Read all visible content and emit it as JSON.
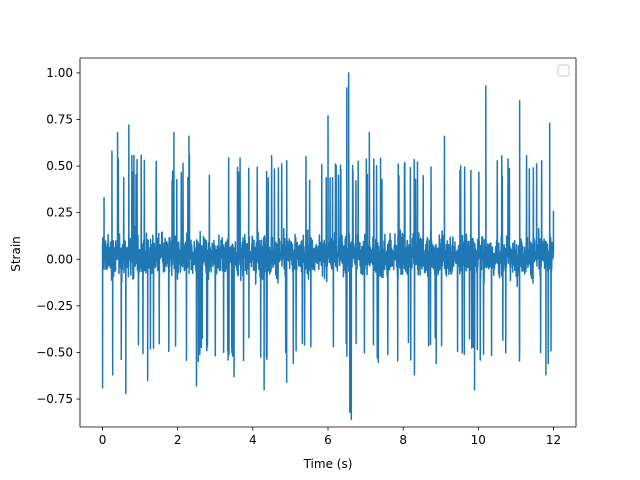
{
  "chart_data": {
    "type": "line",
    "title": "",
    "xlabel": "Time (s)",
    "ylabel": "Strain",
    "xlim": [
      -0.6,
      12.6
    ],
    "ylim": [
      -0.9,
      1.08
    ],
    "xticks": [
      0,
      2,
      4,
      6,
      8,
      10,
      12
    ],
    "xtick_labels": [
      "0",
      "2",
      "4",
      "6",
      "8",
      "10",
      "12"
    ],
    "yticks": [
      -0.75,
      -0.5,
      -0.25,
      0.0,
      0.25,
      0.5,
      0.75,
      1.0
    ],
    "ytick_labels": [
      "−0.75",
      "−0.50",
      "−0.25",
      "0.00",
      "0.25",
      "0.50",
      "0.75",
      "1.00"
    ],
    "grid": false,
    "legend": {
      "placement": "upper-right",
      "entries": []
    },
    "series": [
      {
        "color": "#1f77b4",
        "x_range": [
          0,
          12
        ],
        "typical_band": [
          -0.4,
          0.45
        ],
        "extremes": [
          {
            "x": 0.0,
            "y": -0.69
          },
          {
            "x": 0.04,
            "y": 0.33
          },
          {
            "x": 0.25,
            "y": 0.58
          },
          {
            "x": 0.27,
            "y": -0.62
          },
          {
            "x": 0.4,
            "y": 0.68
          },
          {
            "x": 0.62,
            "y": -0.72
          },
          {
            "x": 0.7,
            "y": 0.72
          },
          {
            "x": 1.2,
            "y": -0.65
          },
          {
            "x": 1.9,
            "y": 0.68
          },
          {
            "x": 2.3,
            "y": 0.66
          },
          {
            "x": 2.5,
            "y": -0.68
          },
          {
            "x": 3.5,
            "y": -0.63
          },
          {
            "x": 4.3,
            "y": -0.7
          },
          {
            "x": 4.9,
            "y": -0.66
          },
          {
            "x": 6.0,
            "y": 0.77
          },
          {
            "x": 6.5,
            "y": 0.92
          },
          {
            "x": 6.55,
            "y": 1.0
          },
          {
            "x": 6.58,
            "y": -0.82
          },
          {
            "x": 6.62,
            "y": -0.86
          },
          {
            "x": 7.1,
            "y": 0.68
          },
          {
            "x": 8.3,
            "y": -0.62
          },
          {
            "x": 9.1,
            "y": 0.66
          },
          {
            "x": 9.9,
            "y": -0.7
          },
          {
            "x": 10.2,
            "y": 0.93
          },
          {
            "x": 11.1,
            "y": 0.85
          },
          {
            "x": 11.9,
            "y": 0.73
          },
          {
            "x": 11.8,
            "y": -0.62
          },
          {
            "x": 12.0,
            "y": 0.26
          }
        ]
      }
    ]
  }
}
